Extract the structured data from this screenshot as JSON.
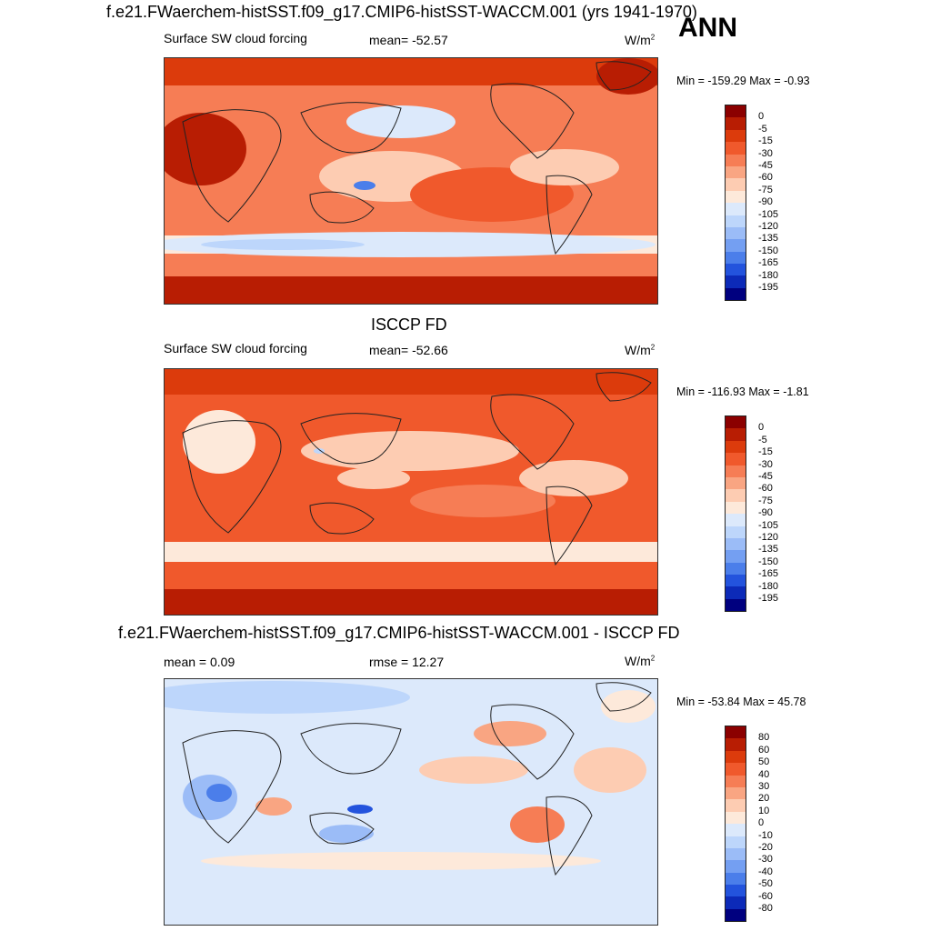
{
  "season": "ANN",
  "panels": [
    {
      "title": "f.e21.FWaerchem-histSST.f09_g17.CMIP6-histSST-WACCM.001 (yrs 1941-1970)",
      "left_label": "Surface SW cloud forcing",
      "center_label": "mean= -52.57",
      "units": "W/m",
      "units_sup": "2",
      "minmax": "Min = -159.29 Max =  -0.93",
      "colorbar_labels": [
        "0",
        "-5",
        "-15",
        "-30",
        "-45",
        "-60",
        "-75",
        "-90",
        "-105",
        "-120",
        "-135",
        "-150",
        "-165",
        "-180",
        "-195"
      ],
      "colors": [
        "#8b0000",
        "#b81d03",
        "#dc3b0c",
        "#f0592c",
        "#f67d55",
        "#f9a582",
        "#fdccb2",
        "#fde9da",
        "#dce9fb",
        "#bdd6fb",
        "#9bbcf7",
        "#749ff2",
        "#4b7eea",
        "#2353dd",
        "#0c2ab8",
        "#00007f"
      ]
    },
    {
      "title": "ISCCP FD",
      "left_label": "Surface SW cloud forcing",
      "center_label": "mean= -52.66",
      "units": "W/m",
      "units_sup": "2",
      "minmax": "Min = -116.93 Max =  -1.81",
      "colorbar_labels": [
        "0",
        "-5",
        "-15",
        "-30",
        "-45",
        "-60",
        "-75",
        "-90",
        "-105",
        "-120",
        "-135",
        "-150",
        "-165",
        "-180",
        "-195"
      ],
      "colors": [
        "#8b0000",
        "#b81d03",
        "#dc3b0c",
        "#f0592c",
        "#f67d55",
        "#f9a582",
        "#fdccb2",
        "#fde9da",
        "#dce9fb",
        "#bdd6fb",
        "#9bbcf7",
        "#749ff2",
        "#4b7eea",
        "#2353dd",
        "#0c2ab8",
        "#00007f"
      ]
    },
    {
      "title": "f.e21.FWaerchem-histSST.f09_g17.CMIP6-histSST-WACCM.001 - ISCCP FD",
      "left_label": "mean =   0.09",
      "center_label": "rmse =  12.27",
      "units": "W/m",
      "units_sup": "2",
      "minmax": "Min = -53.84 Max =  45.78",
      "colorbar_labels": [
        "80",
        "60",
        "50",
        "40",
        "30",
        "20",
        "10",
        "0",
        "-10",
        "-20",
        "-30",
        "-40",
        "-50",
        "-60",
        "-80"
      ],
      "colors": [
        "#8b0000",
        "#b81d03",
        "#dc3b0c",
        "#f0592c",
        "#f67d55",
        "#f9a582",
        "#fdccb2",
        "#fde9da",
        "#dce9fb",
        "#bdd6fb",
        "#9bbcf7",
        "#749ff2",
        "#4b7eea",
        "#2353dd",
        "#0c2ab8",
        "#00007f"
      ]
    }
  ],
  "chart_data": [
    {
      "type": "heatmap",
      "title": "f.e21.FWaerchem-histSST.f09_g17.CMIP6-histSST-WACCM.001 (yrs 1941-1970)",
      "variable": "Surface SW cloud forcing",
      "units": "W/m2",
      "mean": -52.57,
      "min": -159.29,
      "max": -0.93,
      "levels": [
        0,
        -5,
        -15,
        -30,
        -45,
        -60,
        -75,
        -90,
        -105,
        -120,
        -135,
        -150,
        -165,
        -180,
        -195
      ]
    },
    {
      "type": "heatmap",
      "title": "ISCCP FD",
      "variable": "Surface SW cloud forcing",
      "units": "W/m2",
      "mean": -52.66,
      "min": -116.93,
      "max": -1.81,
      "levels": [
        0,
        -5,
        -15,
        -30,
        -45,
        -60,
        -75,
        -90,
        -105,
        -120,
        -135,
        -150,
        -165,
        -180,
        -195
      ]
    },
    {
      "type": "heatmap",
      "title": "f.e21.FWaerchem-histSST.f09_g17.CMIP6-histSST-WACCM.001 - ISCCP FD",
      "units": "W/m2",
      "mean": 0.09,
      "rmse": 12.27,
      "min": -53.84,
      "max": 45.78,
      "levels": [
        80,
        60,
        50,
        40,
        30,
        20,
        10,
        0,
        -10,
        -20,
        -30,
        -40,
        -50,
        -60,
        -80
      ]
    }
  ]
}
